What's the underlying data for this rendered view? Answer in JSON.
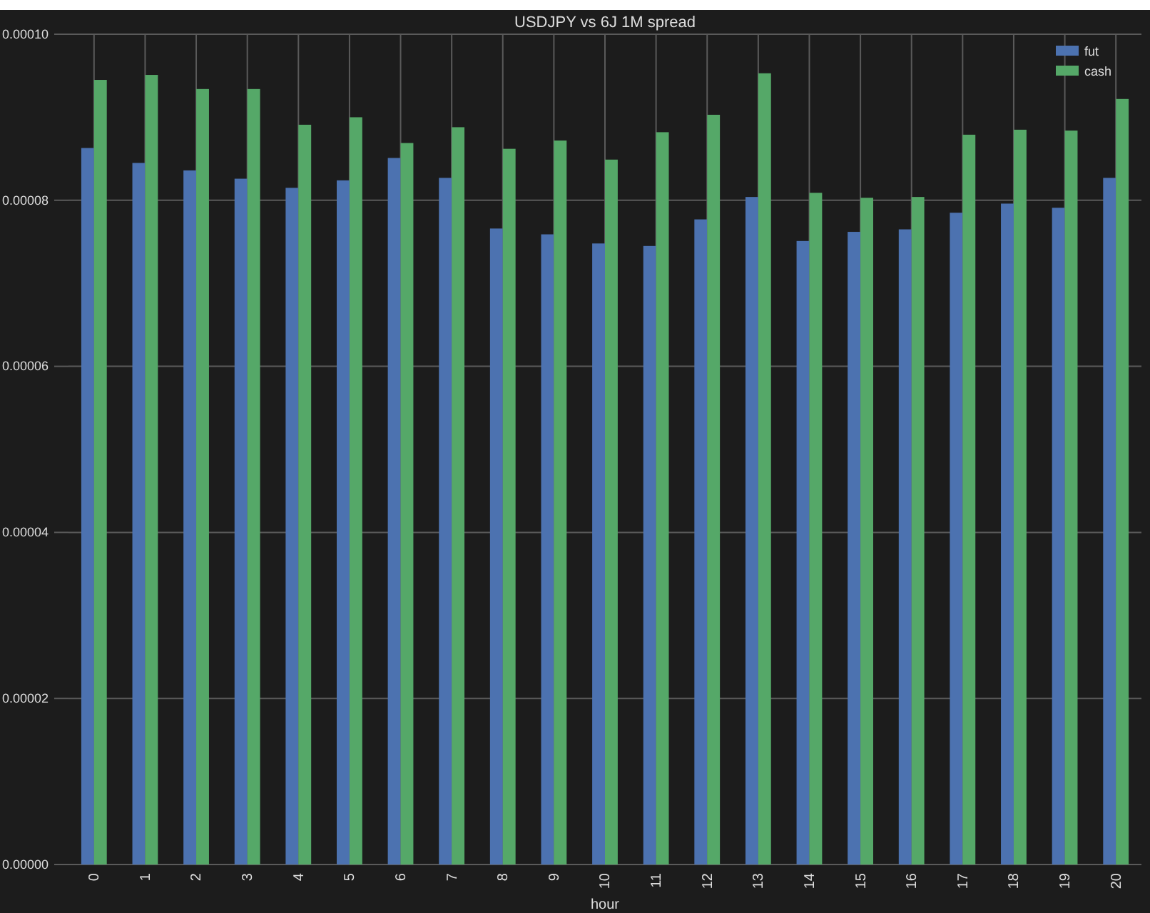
{
  "chart_data": {
    "type": "bar",
    "title": "USDJPY vs 6J 1M spread",
    "xlabel": "hour",
    "categories": [
      "0",
      "1",
      "2",
      "3",
      "4",
      "5",
      "6",
      "7",
      "8",
      "9",
      "10",
      "11",
      "12",
      "13",
      "14",
      "15",
      "16",
      "17",
      "18",
      "19",
      "20"
    ],
    "series": [
      {
        "name": "fut",
        "color": "#4c72b0",
        "values": [
          8.63e-05,
          8.45e-05,
          8.36e-05,
          8.26e-05,
          8.15e-05,
          8.24e-05,
          8.51e-05,
          8.27e-05,
          7.66e-05,
          7.59e-05,
          7.48e-05,
          7.45e-05,
          7.77e-05,
          8.04e-05,
          7.51e-05,
          7.62e-05,
          7.65e-05,
          7.85e-05,
          7.96e-05,
          7.91e-05,
          8.27e-05
        ]
      },
      {
        "name": "cash",
        "color": "#55a868",
        "values": [
          9.45e-05,
          9.51e-05,
          9.34e-05,
          9.34e-05,
          8.91e-05,
          9e-05,
          8.69e-05,
          8.88e-05,
          8.62e-05,
          8.72e-05,
          8.49e-05,
          8.82e-05,
          9.03e-05,
          9.53e-05,
          8.09e-05,
          8.03e-05,
          8.04e-05,
          8.79e-05,
          8.85e-05,
          8.84e-05,
          9.22e-05
        ]
      }
    ],
    "ylim": [
      0,
      0.0001
    ],
    "yticks": [
      {
        "value": 0,
        "label": "0.00000"
      },
      {
        "value": 2e-05,
        "label": "0.00002"
      },
      {
        "value": 4e-05,
        "label": "0.00004"
      },
      {
        "value": 6e-05,
        "label": "0.00006"
      },
      {
        "value": 8e-05,
        "label": "0.00008"
      },
      {
        "value": 0.0001,
        "label": "0.00010"
      }
    ],
    "grid": true,
    "legend": "top right"
  }
}
